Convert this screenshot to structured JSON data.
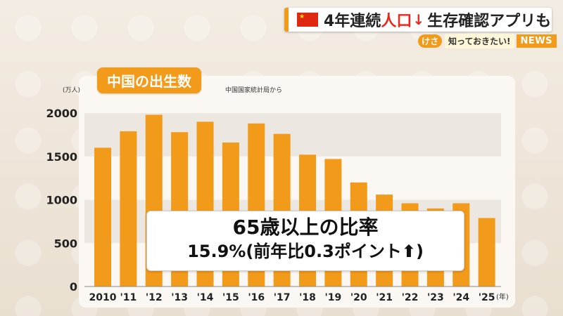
{
  "banner": {
    "part1": "4年連続",
    "accent": "人口",
    "arrow": "↓",
    "part2": "生存確認アプリも"
  },
  "sub_banner": {
    "kesa": "けさ",
    "shitte": "知っておきたい!",
    "news": "NEWS"
  },
  "overlay": {
    "line1": "65歳以上の比率",
    "line2_prefix": "15.9%(前年比0.3ポイント",
    "line2_arrow": "⬆",
    "line2_suffix": ")"
  },
  "colors": {
    "bar": "#f29a1a",
    "accent": "#e8281e",
    "band": "#ece7e0"
  },
  "chart_data": {
    "type": "bar",
    "title": "中国の出生数",
    "source": "中国国家統計局から",
    "ylabel": "(万人)",
    "xunit": "(年)",
    "categories": [
      "2010",
      "'11",
      "'12",
      "'13",
      "'14",
      "'15",
      "'16",
      "'17",
      "'18",
      "'19",
      "'20",
      "'21",
      "'22",
      "'23",
      "'24",
      "'25"
    ],
    "values": [
      1600,
      1790,
      1980,
      1780,
      1900,
      1660,
      1880,
      1760,
      1520,
      1470,
      1200,
      1060,
      960,
      900,
      960,
      790
    ],
    "yticks": [
      0,
      500,
      1000,
      1500,
      2000
    ],
    "ylim": [
      0,
      2000
    ],
    "grid": "alternating bands"
  }
}
